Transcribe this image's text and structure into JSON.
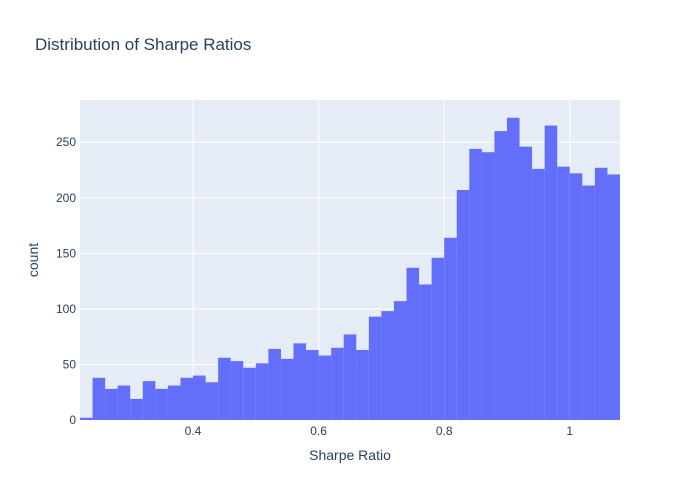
{
  "chart_data": {
    "type": "bar",
    "title": "Distribution of Sharpe Ratios",
    "xlabel": "Sharpe Ratio",
    "ylabel": "count",
    "x_range": [
      0.22,
      1.08
    ],
    "ylim": [
      0,
      288
    ],
    "x_ticks": [
      0.4,
      0.6,
      0.8,
      1.0
    ],
    "x_tick_labels": [
      "0.4",
      "0.6",
      "0.8",
      "1"
    ],
    "y_ticks": [
      0,
      50,
      100,
      150,
      200,
      250
    ],
    "y_tick_labels": [
      "0",
      "50",
      "100",
      "150",
      "200",
      "250"
    ],
    "bin_width": 0.02,
    "bin_starts": [
      0.22,
      0.24,
      0.26,
      0.28,
      0.3,
      0.32,
      0.34,
      0.36,
      0.38,
      0.4,
      0.42,
      0.44,
      0.46,
      0.48,
      0.5,
      0.52,
      0.54,
      0.56,
      0.58,
      0.6,
      0.62,
      0.64,
      0.66,
      0.68,
      0.7,
      0.72,
      0.74,
      0.76,
      0.78,
      0.8,
      0.82,
      0.84,
      0.86,
      0.88,
      0.9,
      0.92,
      0.94,
      0.96,
      0.98,
      1.0,
      1.02,
      1.04,
      1.06
    ],
    "values": [
      2,
      38,
      28,
      31,
      19,
      35,
      28,
      31,
      38,
      40,
      34,
      56,
      53,
      47,
      51,
      64,
      55,
      69,
      63,
      58,
      65,
      77,
      63,
      93,
      98,
      107,
      137,
      122,
      146,
      164,
      207,
      244,
      241,
      260,
      272,
      246,
      226,
      265,
      228,
      222,
      211,
      227,
      221
    ],
    "grid": true,
    "bar_color": "#636efa",
    "plot_bg": "#e5ecf6",
    "grid_color": "#ffffff"
  }
}
